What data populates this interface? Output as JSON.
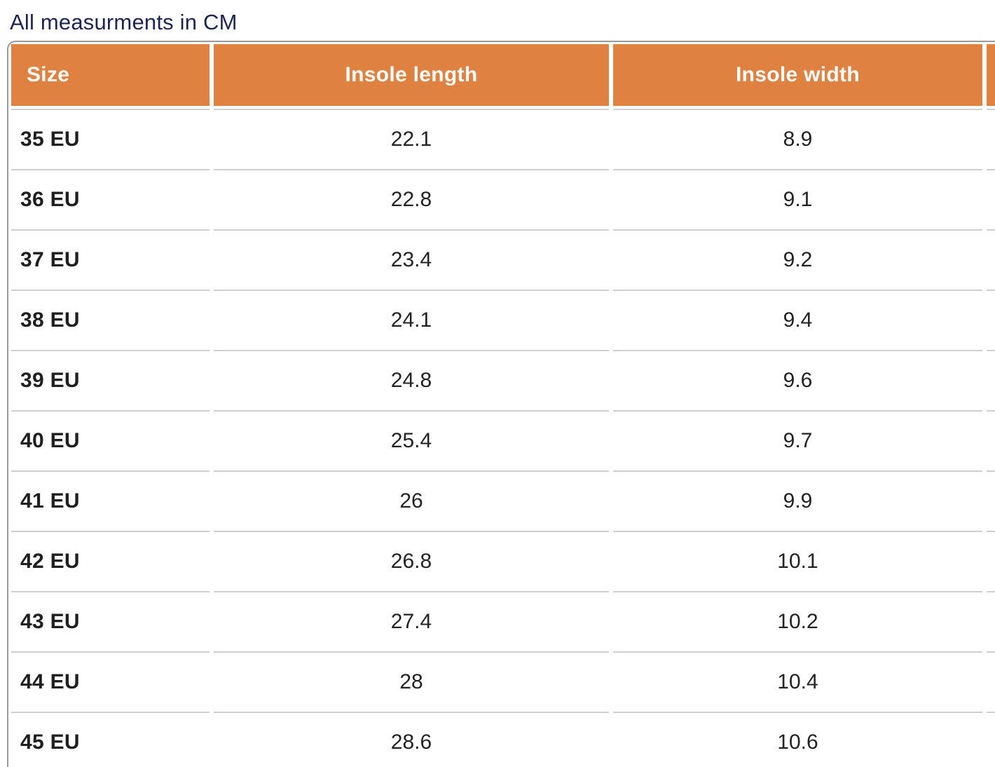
{
  "page": {
    "title": "All measurments in CM"
  },
  "colors": {
    "header_bg": "#df8140",
    "header_text": "#ffffff",
    "title_text": "#1c2554",
    "row_divider": "#cfcfcf",
    "outer_border": "#9e9a9a",
    "body_text": "#232323"
  },
  "table": {
    "columns": [
      "Size",
      "Insole length",
      "Insole width"
    ],
    "rows": [
      {
        "size": "35 EU",
        "insole_length": "22.1",
        "insole_width": "8.9"
      },
      {
        "size": "36 EU",
        "insole_length": "22.8",
        "insole_width": "9.1"
      },
      {
        "size": "37 EU",
        "insole_length": "23.4",
        "insole_width": "9.2"
      },
      {
        "size": "38 EU",
        "insole_length": "24.1",
        "insole_width": "9.4"
      },
      {
        "size": "39 EU",
        "insole_length": "24.8",
        "insole_width": "9.6"
      },
      {
        "size": "40 EU",
        "insole_length": "25.4",
        "insole_width": "9.7"
      },
      {
        "size": "41 EU",
        "insole_length": "26",
        "insole_width": "9.9"
      },
      {
        "size": "42 EU",
        "insole_length": "26.8",
        "insole_width": "10.1"
      },
      {
        "size": "43 EU",
        "insole_length": "27.4",
        "insole_width": "10.2"
      },
      {
        "size": "44 EU",
        "insole_length": "28",
        "insole_width": "10.4"
      },
      {
        "size": "45 EU",
        "insole_length": "28.6",
        "insole_width": "10.6"
      }
    ]
  }
}
